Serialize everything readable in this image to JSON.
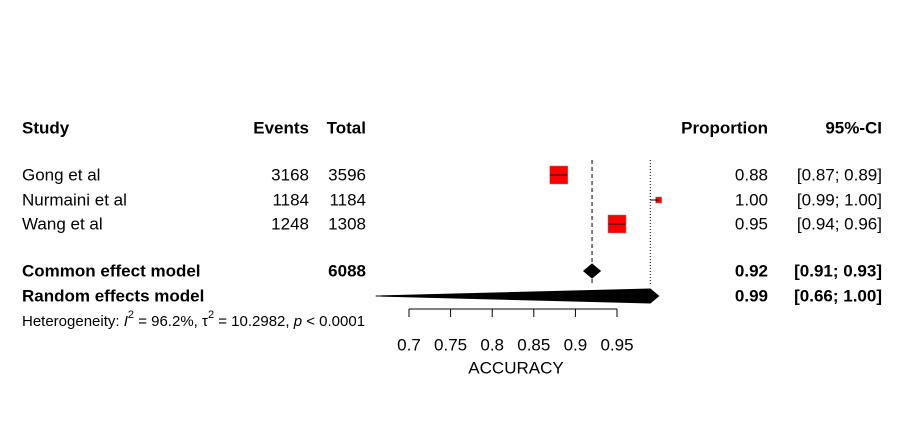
{
  "chart_data": {
    "type": "forest",
    "columns": {
      "study": "Study",
      "events": "Events",
      "total": "Total",
      "proportion": "Proportion",
      "ci": "95%-CI"
    },
    "studies": [
      {
        "name": "Gong et al",
        "events": 3168,
        "total": 3596,
        "proportion": 0.88,
        "lower": 0.87,
        "upper": 0.89,
        "ci_label": "[0.87; 0.89]"
      },
      {
        "name": "Nurmaini et al",
        "events": 1184,
        "total": 1184,
        "proportion": 1.0,
        "value_label": "1.00",
        "lower": 0.99,
        "upper": 1.0,
        "ci_label": "[0.99; 1.00]"
      },
      {
        "name": "Wang et al",
        "events": 1248,
        "total": 1308,
        "proportion": 0.95,
        "lower": 0.94,
        "upper": 0.96,
        "ci_label": "[0.94; 0.96]"
      }
    ],
    "models": [
      {
        "name": "Common effect model",
        "total": 6088,
        "estimate": 0.92,
        "lower": 0.91,
        "upper": 0.93,
        "ci_label": "[0.91; 0.93]",
        "line": "dashed"
      },
      {
        "name": "Random effects model",
        "estimate": 0.99,
        "lower": 0.66,
        "upper": 1.0,
        "ci_label": "[0.66; 1.00]",
        "line": "dotted"
      }
    ],
    "heterogeneity": [
      "Heterogeneity: ",
      "I",
      "2",
      " = 96.2%, ",
      "τ",
      "2",
      " = 10.2982, ",
      "p",
      " < 0.0001"
    ],
    "x_label": "ACCURACY",
    "xlim": [
      0.7,
      0.95
    ],
    "xticks": [
      0.7,
      0.75,
      0.8,
      0.85,
      0.9,
      0.95
    ],
    "point_color": "#ff0000"
  }
}
